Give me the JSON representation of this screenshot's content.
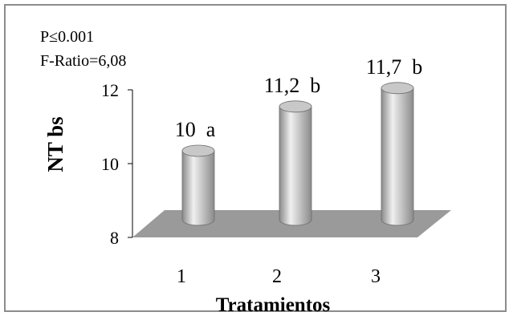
{
  "chart_data": {
    "type": "bar",
    "style": "3d-cylinder",
    "categories": [
      "1",
      "2",
      "3"
    ],
    "values": [
      10,
      11.2,
      11.7
    ],
    "data_labels": [
      "10  a",
      "11,2  b",
      "11,7  b"
    ],
    "title": "",
    "xlabel": "Tratamientos",
    "ylabel": "NT bs",
    "ylim": [
      8,
      12
    ],
    "yticks": [
      8,
      10,
      12
    ],
    "grid": false,
    "legend": "none",
    "annotations": [
      "P≤0.001",
      "F-Ratio=6,08"
    ],
    "colors": {
      "bar_body": "#c8c8c8",
      "bar_highlight": "#f0f0f0",
      "bar_shadow": "#8a8a8a",
      "floor": "#9a9a9a",
      "frame_border": "#8c8c8c",
      "text": "#000000"
    }
  }
}
